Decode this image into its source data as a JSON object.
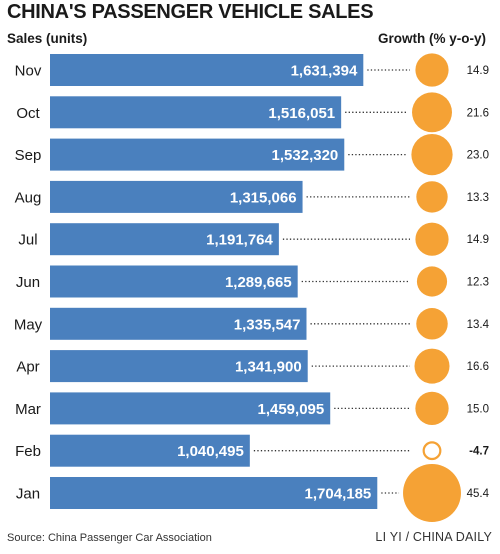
{
  "chart_data": {
    "type": "bar",
    "orientation": "horizontal",
    "title": "CHINA'S PASSENGER VEHICLE SALES",
    "sales_label": "Sales (units)",
    "growth_label": "Growth (% y-o-y)",
    "categories": [
      "Nov",
      "Oct",
      "Sep",
      "Aug",
      "Jul",
      "Jun",
      "May",
      "Apr",
      "Mar",
      "Feb",
      "Jan"
    ],
    "sales_labels": [
      "1,631,394",
      "1,516,051",
      "1,532,320",
      "1,315,066",
      "1,191,764",
      "1,289,665",
      "1,335,547",
      "1,341,900",
      "1,459,095",
      "1,040,495",
      "1,704,185"
    ],
    "series": [
      {
        "name": "Sales (units)",
        "values": [
          1631394,
          1516051,
          1532320,
          1315066,
          1191764,
          1289665,
          1335547,
          1341900,
          1459095,
          1040495,
          1704185
        ]
      },
      {
        "name": "Growth (% y-o-y)",
        "values": [
          14.9,
          21.6,
          23.0,
          13.3,
          14.9,
          12.3,
          13.4,
          16.6,
          15.0,
          -4.7,
          45.4
        ]
      }
    ],
    "growth_labels": [
      "14.9",
      "21.6",
      "23.0",
      "13.3",
      "14.9",
      "12.3",
      "13.4",
      "16.6",
      "15.0",
      "-4.7",
      "45.4"
    ],
    "legend": "none",
    "grid": false
  },
  "source": "Source: China Passenger Car Association",
  "credit": "LI YI / CHINA DAILY",
  "colors": {
    "bar": "#4a80be",
    "bubble": "#f5a235",
    "negative_bubble_stroke": "#f5a235",
    "text": "#1a1a1a",
    "bar_label": "#ffffff"
  }
}
